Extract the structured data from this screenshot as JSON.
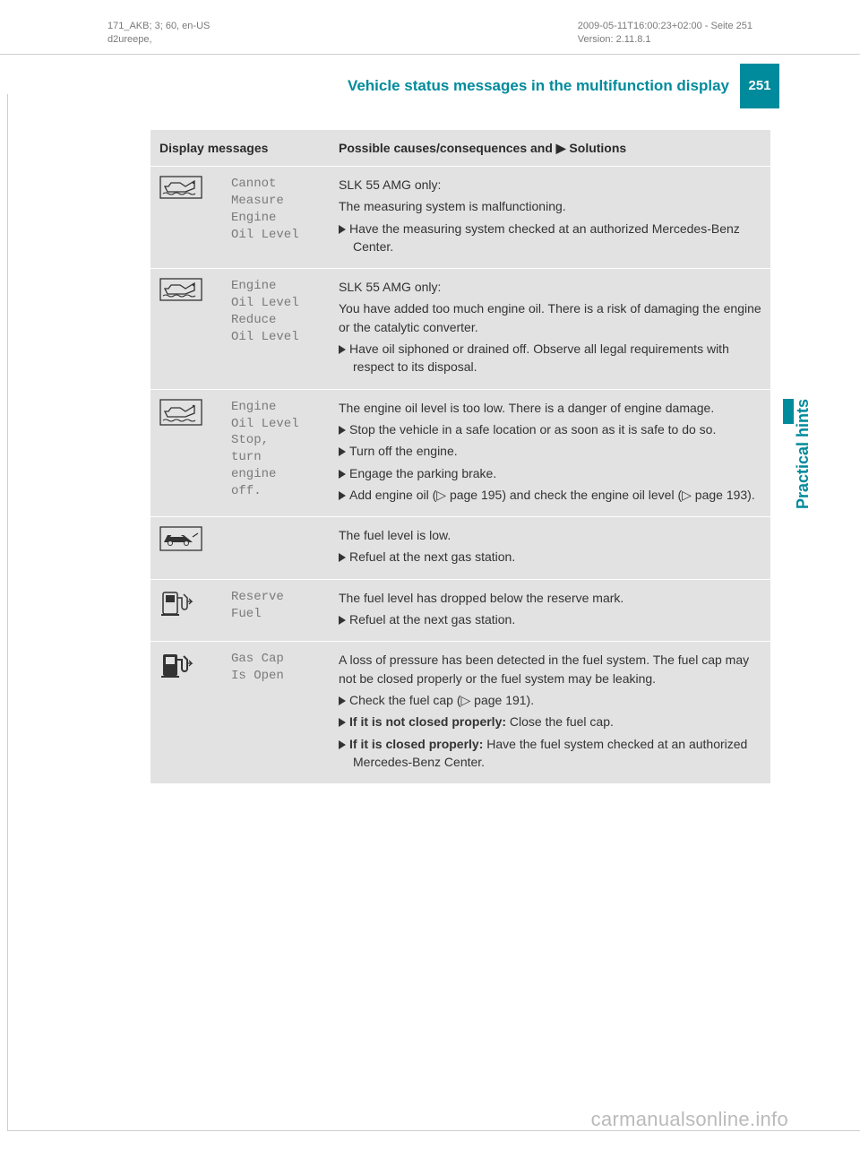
{
  "meta": {
    "left_line1": "171_AKB; 3; 60, en-US",
    "left_line2": "d2ureepe,",
    "right_line1": "2009-05-11T16:00:23+02:00 - Seite 251",
    "right_line2": "Version: 2.11.8.1"
  },
  "header": {
    "title": "Vehicle status messages in the multifunction display",
    "page_number": "251"
  },
  "side_tab": "Practical hints",
  "table": {
    "header_col1": "Display messages",
    "header_col2": "Possible causes/consequences and ▶ Solutions",
    "rows": [
      {
        "icon": "oil-wave",
        "message": "Cannot\nMeasure\nEngine\nOil Level",
        "solution": {
          "lead": "SLK 55 AMG only:",
          "paras": [
            "The measuring system is malfunctioning."
          ],
          "bullets": [
            {
              "text": "Have the measuring system checked at an authorized Mercedes-Benz Center."
            }
          ]
        }
      },
      {
        "icon": "oil-wave",
        "message": "Engine\nOil Level\nReduce\nOil Level",
        "solution": {
          "lead": "SLK 55 AMG only:",
          "paras": [
            "You have added too much engine oil. There is a risk of damaging the engine or the catalytic converter."
          ],
          "bullets": [
            {
              "text": "Have oil siphoned or drained off. Observe all legal requirements with respect to its disposal."
            }
          ]
        }
      },
      {
        "icon": "oil-wave-box",
        "message": "Engine\nOil Level\nStop,\nturn\nengine\noff.",
        "solution": {
          "paras": [
            "The engine oil level is too low. There is a danger of engine damage."
          ],
          "bullets": [
            {
              "text": "Stop the vehicle in a safe location or as soon as it is safe to do so."
            },
            {
              "text": "Turn off the engine."
            },
            {
              "text": "Engage the parking brake."
            },
            {
              "text": "Add engine oil (▷ page 195) and check the engine oil level (▷ page 193)."
            }
          ]
        }
      },
      {
        "icon": "car",
        "message": "",
        "solution": {
          "paras": [
            "The fuel level is low."
          ],
          "bullets": [
            {
              "text": "Refuel at the next gas station."
            }
          ]
        }
      },
      {
        "icon": "fuel-outline",
        "message": "Reserve\nFuel",
        "solution": {
          "paras": [
            "The fuel level has dropped below the reserve mark."
          ],
          "bullets": [
            {
              "text": "Refuel at the next gas station."
            }
          ]
        }
      },
      {
        "icon": "fuel-solid",
        "message": "Gas Cap\nIs Open",
        "solution": {
          "paras": [
            "A loss of pressure has been detected in the fuel system. The fuel cap may not be closed properly or the fuel system may be leaking."
          ],
          "bullets": [
            {
              "text": "Check the fuel cap (▷ page 191)."
            },
            {
              "bold": "If it is not closed properly:",
              "rest": " Close the fuel cap."
            },
            {
              "bold": "If it is closed properly:",
              "rest": " Have the fuel system checked at an authorized Mercedes-Benz Center."
            }
          ]
        }
      }
    ]
  },
  "watermark": "carmanualsonline.info",
  "colors": {
    "teal": "#008b9c",
    "table_bg": "#e2e2e2",
    "mono_gray": "#7a7a7a",
    "text": "#333333"
  }
}
